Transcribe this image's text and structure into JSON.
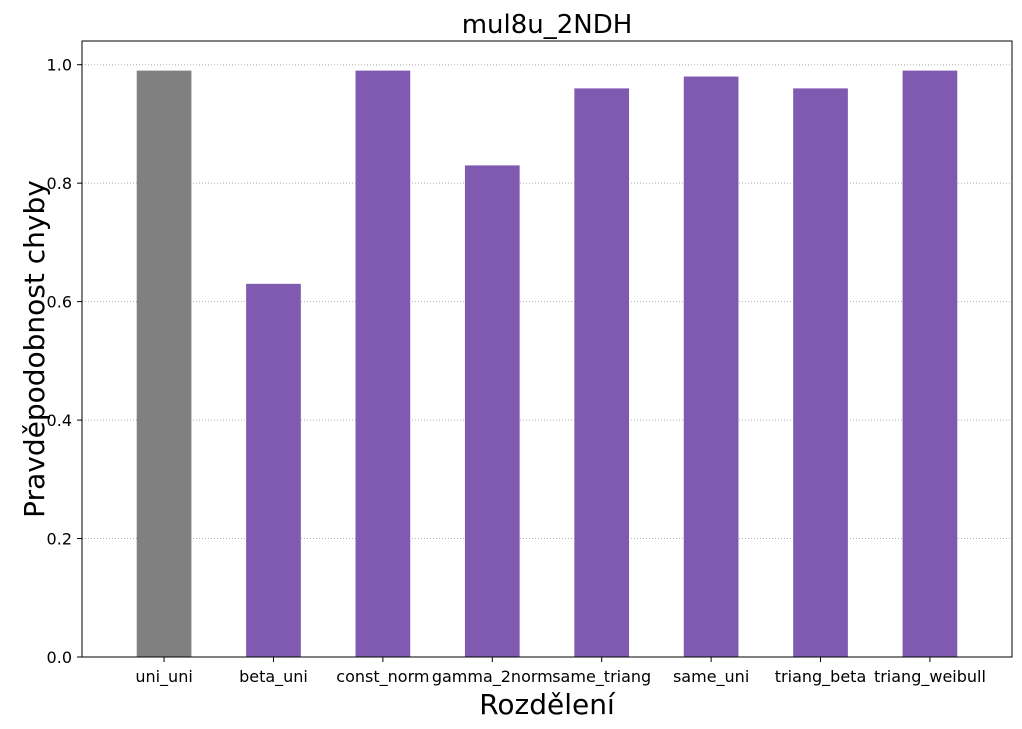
{
  "chart_data": {
    "type": "bar",
    "title": "mul8u_2NDH",
    "xlabel": "Rozdělení",
    "ylabel": "Pravděpodobnost chyby",
    "categories": [
      "uni_uni",
      "beta_uni",
      "const_norm",
      "gamma_2norm",
      "same_triang",
      "same_uni",
      "triang_beta",
      "triang_weibull"
    ],
    "values": [
      0.99,
      0.63,
      0.99,
      0.83,
      0.96,
      0.98,
      0.96,
      0.99
    ],
    "bar_colors": [
      "#808080",
      "#7f5ab0",
      "#7f5ab0",
      "#7f5ab0",
      "#7f5ab0",
      "#7f5ab0",
      "#7f5ab0",
      "#7f5ab0"
    ],
    "ylim": [
      0,
      1.04
    ],
    "yticks": [
      "0.0",
      "0.2",
      "0.4",
      "0.6",
      "0.8",
      "1.0"
    ],
    "grid": "y-dotted",
    "legend": "none"
  }
}
